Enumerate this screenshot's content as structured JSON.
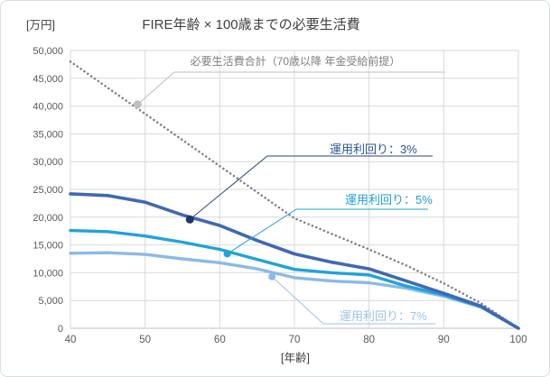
{
  "title": "FIRE年齢 × 100歳までの必要生活費",
  "y_unit_label": "[万円]",
  "x_axis_label": "[年齢]",
  "colors": {
    "grid": "#D9D9D9",
    "axis_line": "#BFBFBF",
    "tick_text": "#595959",
    "title_text": "#404040"
  },
  "chart_data": {
    "type": "line",
    "title": "FIRE年齢 × 100歳までの必要生活費",
    "xlabel": "[年齢]",
    "ylabel": "[万円]",
    "xlim": [
      40,
      100
    ],
    "ylim": [
      0,
      50000
    ],
    "xticks": [
      40,
      50,
      60,
      70,
      80,
      90,
      100
    ],
    "yticks": [
      0,
      5000,
      10000,
      15000,
      20000,
      25000,
      30000,
      35000,
      40000,
      45000,
      50000
    ],
    "grid": true,
    "legend_position": "inline-callouts",
    "x": [
      40,
      45,
      50,
      55,
      60,
      65,
      70,
      75,
      80,
      85,
      90,
      95,
      100
    ],
    "series": [
      {
        "name": "必要生活費合計（70歳以降 年金受給前提）",
        "style": "dotted",
        "color": "#7F7F7F",
        "width": 2.5,
        "values": [
          48000,
          43300,
          38600,
          33900,
          29200,
          24500,
          19800,
          17000,
          14200,
          11300,
          8100,
          4500,
          0
        ]
      },
      {
        "name": "運用利回り：3%",
        "style": "solid",
        "color": "#4068B4",
        "width": 3.6,
        "values": [
          24200,
          23900,
          22700,
          20400,
          18500,
          15800,
          13400,
          11900,
          10700,
          8500,
          6300,
          4000,
          0
        ]
      },
      {
        "name": "運用利回り：5%",
        "style": "solid",
        "color": "#1FA3DC",
        "width": 3.4,
        "values": [
          17600,
          17400,
          16600,
          15500,
          14200,
          12400,
          10600,
          10000,
          9600,
          7600,
          6000,
          3900,
          0
        ]
      },
      {
        "name": "運用利回り：7%",
        "style": "solid",
        "color": "#8ABAE8",
        "width": 3.4,
        "values": [
          13500,
          13600,
          13300,
          12500,
          11800,
          10700,
          9100,
          8500,
          8200,
          7200,
          5800,
          3800,
          0
        ]
      }
    ],
    "annotations": [
      {
        "label": "必要生活費合計（70歳以降 年金受給前提）",
        "marker_age": 49,
        "marker_value": 40300,
        "marker_color": "#BFBFBF",
        "line_color": "#BFBFBF",
        "text_color": "#7F7F7F"
      },
      {
        "label": "運用利回り：3%",
        "marker_age": 56,
        "marker_value": 19600,
        "marker_color": "#1F3864",
        "line_color": "#2A4575",
        "text_color": "#2E5395"
      },
      {
        "label": "運用利回り：5%",
        "marker_age": 61,
        "marker_value": 13400,
        "marker_color": "#1FA3DC",
        "line_color": "#1FA3DC",
        "text_color": "#1F9FD8"
      },
      {
        "label": "運用利回り：7%",
        "marker_age": 67,
        "marker_value": 9300,
        "marker_color": "#8ABAE8",
        "line_color": "#9DC3E6",
        "text_color": "#9DC3E6"
      }
    ]
  }
}
